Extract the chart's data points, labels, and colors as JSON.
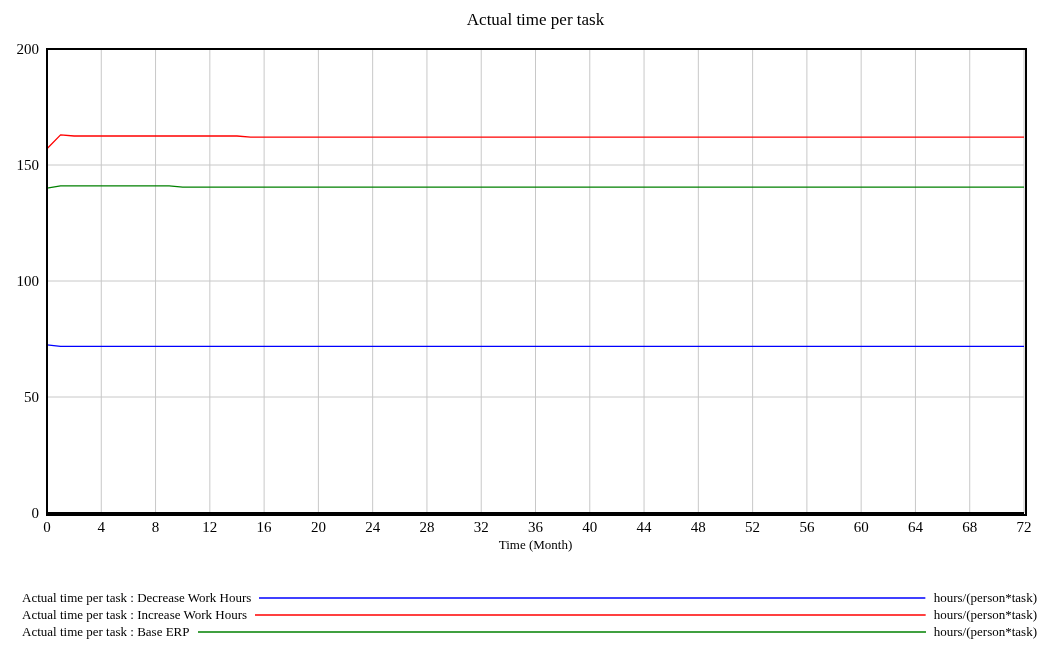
{
  "chart_data": {
    "type": "line",
    "title": "Actual time per task",
    "xlabel": "Time (Month)",
    "annotations": [
      "hours/(person*task)",
      "hours/(person*task)",
      "hours/(person*task)"
    ],
    "x": [
      0,
      1,
      2,
      9,
      10,
      14,
      15,
      72
    ],
    "series": [
      {
        "name": "Actual time per task : Decrease Work Hours",
        "color": "#0000ff",
        "values": [
          72.5,
          71.8,
          71.8,
          71.8,
          71.8,
          71.8,
          71.8,
          71.8
        ]
      },
      {
        "name": "Actual time per task : Increase Work Hours",
        "color": "#ff0000",
        "values": [
          157,
          163,
          162.5,
          162.5,
          162.5,
          162.5,
          162,
          162
        ]
      },
      {
        "name": "Actual time per task : Base ERP",
        "color": "#008000",
        "values": [
          140,
          141,
          141,
          141,
          140.5,
          140.5,
          140.5,
          140.5
        ]
      }
    ],
    "xlim": [
      0,
      72
    ],
    "xticks": [
      0,
      4,
      8,
      12,
      16,
      20,
      24,
      28,
      32,
      36,
      40,
      44,
      48,
      52,
      56,
      60,
      64,
      68,
      72
    ],
    "ylim": [
      0,
      200
    ],
    "yticks": [
      0,
      50,
      100,
      150,
      200
    ],
    "grid": true,
    "legend": "bottom",
    "marker": "none",
    "line_style": "solid"
  }
}
